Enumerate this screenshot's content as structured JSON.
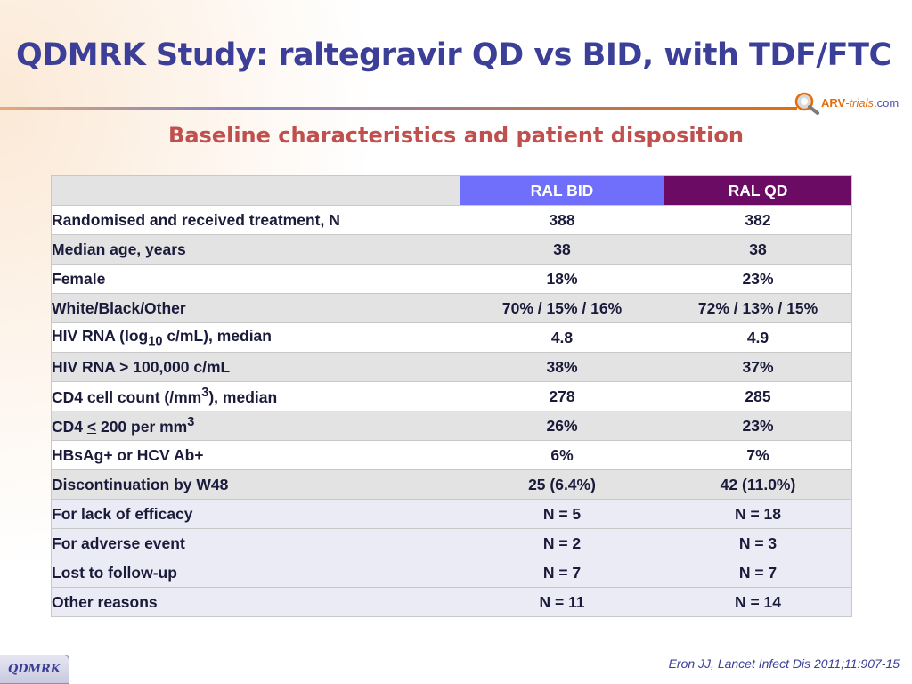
{
  "slide": {
    "title": "QDMRK Study: raltegravir QD vs BID, with TDF/FTC",
    "subtitle": "Baseline characteristics and patient disposition",
    "citation": "Eron JJ, Lancet Infect Dis 2011;11:907-15",
    "tag": "QDMRK"
  },
  "logo": {
    "part1": "ARV",
    "part2": "-trials",
    "part3": ".com",
    "icon": "magnifier-logo-icon"
  },
  "table": {
    "headers": [
      "",
      "RAL BID",
      "RAL QD"
    ],
    "rows": [
      {
        "label": "Randomised and received treatment, N",
        "bid": "388",
        "qd": "382"
      },
      {
        "label": "Median age, years",
        "bid": "38",
        "qd": "38"
      },
      {
        "label": "Female",
        "bid": "18%",
        "qd": "23%"
      },
      {
        "label": "White/Black/Other",
        "bid": "70% / 15% / 16%",
        "qd": "72% / 13% / 15%"
      },
      {
        "label_parts": [
          "HIV RNA (log",
          "10",
          " c/mL), median"
        ],
        "bid": "4.8",
        "qd": "4.9"
      },
      {
        "label": "HIV RNA > 100,000 c/mL",
        "bid": "38%",
        "qd": "37%"
      },
      {
        "label_parts": [
          "CD4 cell count (/mm",
          "3",
          "), median"
        ],
        "bid": "278",
        "qd": "285"
      },
      {
        "label_parts": [
          "CD4 ",
          "<",
          " 200 per mm",
          "3"
        ],
        "bid": "26%",
        "qd": "23%"
      },
      {
        "label": "HBsAg+ or HCV Ab+",
        "bid": "6%",
        "qd": "7%"
      },
      {
        "label": "Discontinuation by W48",
        "bid": "25 (6.4%)",
        "qd": "42 (11.0%)"
      },
      {
        "label": "For lack of efficacy",
        "bid": "N = 5",
        "qd": "N = 18"
      },
      {
        "label": "For adverse event",
        "bid": "N = 2",
        "qd": "N = 3"
      },
      {
        "label": "Lost to follow-up",
        "bid": "N = 7",
        "qd": "N = 7"
      },
      {
        "label": "Other reasons",
        "bid": "N = 11",
        "qd": "N = 14"
      }
    ]
  },
  "colors": {
    "title": "#3b3f98",
    "subtitle": "#c0504d",
    "bid_header": "#6f6ffc",
    "qd_header": "#6c0b63"
  }
}
